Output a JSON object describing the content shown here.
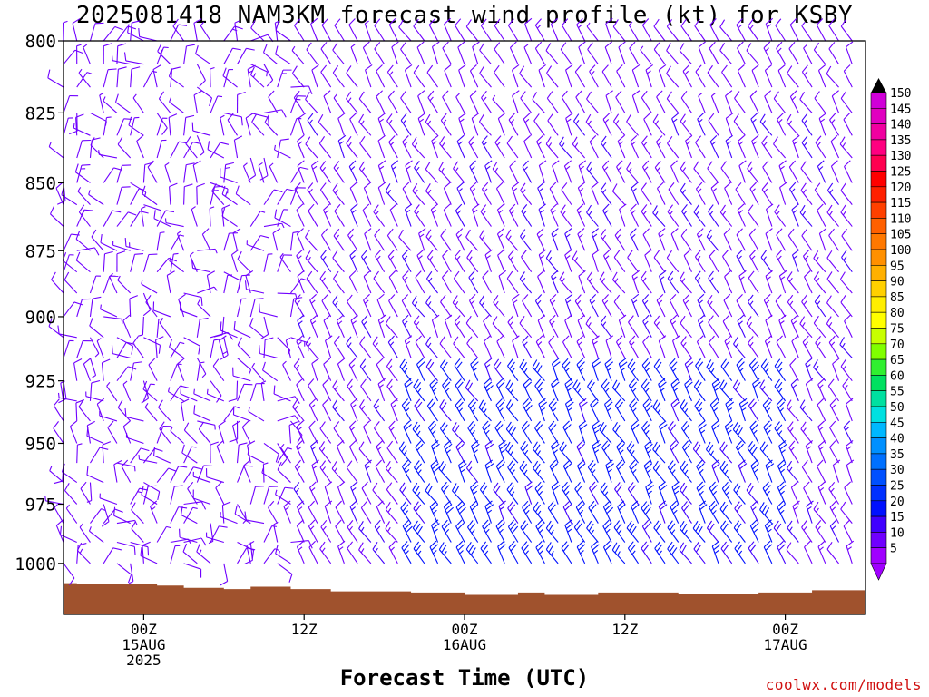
{
  "page": {
    "title": "2025081418 NAM3KM forecast wind profile (kt) for KSBY",
    "xlabel": "Forecast Time (UTC)",
    "credit": "coolwx.com/models"
  },
  "chart_data": {
    "type": "wind-barb time-height profile",
    "title": "2025081418 NAM3KM forecast wind profile (kt) for KSBY",
    "xlabel": "Forecast Time (UTC)",
    "ylabel": "",
    "y_axis": {
      "quantity": "pressure (hPa)",
      "ylim": [
        800,
        1022
      ],
      "ticks": [
        "800",
        "825",
        "850",
        "875",
        "900",
        "925",
        "950",
        "975",
        "1000"
      ]
    },
    "x_axis": {
      "xlim_hours": [
        -6,
        54
      ],
      "ticks": [
        {
          "hour": 0,
          "lines": [
            "00Z",
            "15AUG",
            "2025"
          ]
        },
        {
          "hour": 12,
          "lines": [
            "12Z"
          ]
        },
        {
          "hour": 24,
          "lines": [
            "00Z",
            "16AUG"
          ]
        },
        {
          "hour": 36,
          "lines": [
            "12Z"
          ]
        },
        {
          "hour": 48,
          "lines": [
            "00Z",
            "17AUG"
          ]
        }
      ]
    },
    "colorbar": {
      "labels": [
        "150",
        "145",
        "140",
        "135",
        "130",
        "125",
        "120",
        "115",
        "110",
        "105",
        "100",
        "95",
        "90",
        "85",
        "80",
        "75",
        "70",
        "65",
        "60",
        "55",
        "50",
        "45",
        "40",
        "35",
        "30",
        "25",
        "20",
        "15",
        "10",
        "5"
      ],
      "colors": [
        "#d000d8",
        "#e000c0",
        "#f000a0",
        "#ff0080",
        "#ff0050",
        "#ff0000",
        "#ff2000",
        "#ff4000",
        "#ff6000",
        "#ff7800",
        "#ff9000",
        "#ffb000",
        "#ffd000",
        "#ffee00",
        "#ffff00",
        "#c8ff00",
        "#80ff00",
        "#30f030",
        "#00e060",
        "#00e0a0",
        "#00e0e0",
        "#00b8ff",
        "#0090ff",
        "#0070ff",
        "#0050ff",
        "#0030ff",
        "#0010ff",
        "#4000ff",
        "#7000ff",
        "#a000ff"
      ]
    },
    "terrain": {
      "color": "#a0522d",
      "surface_pressure": [
        {
          "hour": -6,
          "p": 1008.5
        },
        {
          "hour": -5,
          "p": 1009
        },
        {
          "hour": 1,
          "p": 1009.5
        },
        {
          "hour": 3,
          "p": 1010.5
        },
        {
          "hour": 6,
          "p": 1011
        },
        {
          "hour": 8,
          "p": 1010
        },
        {
          "hour": 11,
          "p": 1011
        },
        {
          "hour": 14,
          "p": 1012
        },
        {
          "hour": 20,
          "p": 1012.5
        },
        {
          "hour": 24,
          "p": 1013.5
        },
        {
          "hour": 28,
          "p": 1012.5
        },
        {
          "hour": 30,
          "p": 1013.5
        },
        {
          "hour": 34,
          "p": 1012.5
        },
        {
          "hour": 40,
          "p": 1013
        },
        {
          "hour": 46,
          "p": 1012.5
        },
        {
          "hour": 50,
          "p": 1011.5
        },
        {
          "hour": 54,
          "p": 1011
        }
      ]
    },
    "barbs": {
      "time_step_hours": 1,
      "start_hour": -6,
      "end_hour": 53,
      "levels_hpa": [
        800,
        808,
        816,
        825,
        833,
        841,
        850,
        858,
        866,
        875,
        883,
        891,
        900,
        908,
        916,
        925,
        933,
        941,
        950,
        958,
        966,
        975,
        983,
        991,
        1000
      ],
      "wind_notes": "Light (5-15 kt) variable winds at all levels before ~12Z 15AUG; after 12Z predominantly north-northwesterly 10-20 kt, strongest (20-30 kt) near 930-990 hPa between 12Z 16AUG and 00Z 17AUG."
    }
  }
}
